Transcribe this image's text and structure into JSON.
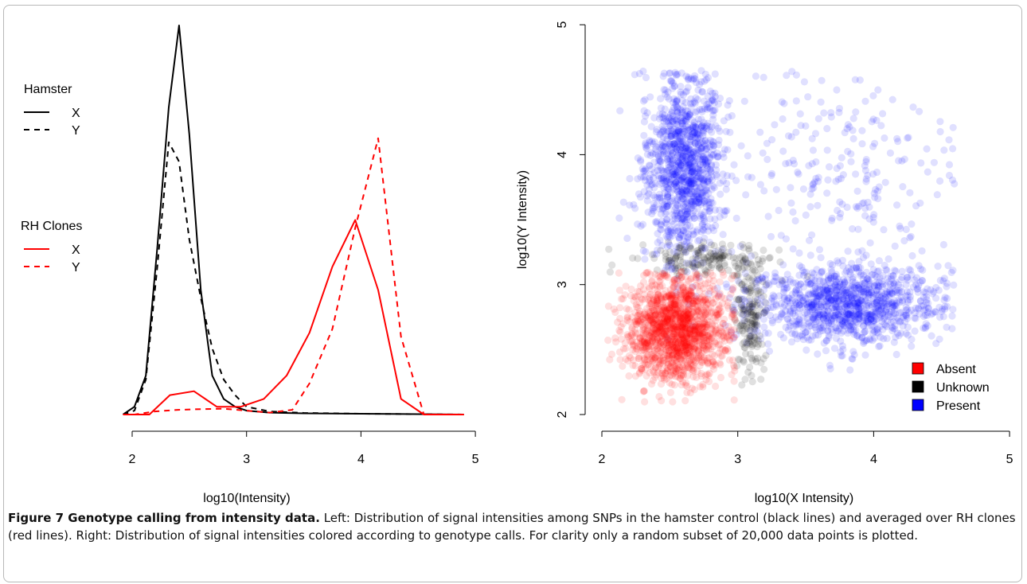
{
  "caption": {
    "bold": "Figure 7 Genotype calling from intensity data.",
    "text": "Left: Distribution of signal intensities among SNPs in the hamster control (black lines) and averaged over RH clones (red lines). Right: Distribution of signal intensities colored according to genotype calls. For clarity only a random subset of 20,000 data points is plotted."
  },
  "colors": {
    "black": "#000000",
    "red": "#ff0000",
    "blue": "#0000ff"
  },
  "chart_data": [
    {
      "type": "line",
      "xlabel": "log10(Intensity)",
      "ylabel": "",
      "xlim": [
        1.9,
        4.9
      ],
      "ylim": [
        0,
        1.0
      ],
      "x_ticks": [
        2,
        3,
        4,
        5
      ],
      "legend": [
        {
          "title": "Hamster",
          "entries": [
            {
              "label": "X",
              "style": "solid",
              "color": "#000000"
            },
            {
              "label": "Y",
              "style": "dashed",
              "color": "#000000"
            }
          ]
        },
        {
          "title": "RH Clones",
          "entries": [
            {
              "label": "X",
              "style": "solid",
              "color": "#ff0000"
            },
            {
              "label": "Y",
              "style": "dashed",
              "color": "#ff0000"
            }
          ]
        }
      ],
      "series": [
        {
          "group": "Hamster",
          "name": "X",
          "color": "#000000",
          "style": "solid",
          "x": [
            1.92,
            2.02,
            2.12,
            2.22,
            2.32,
            2.41,
            2.5,
            2.6,
            2.7,
            2.8,
            2.9,
            3.0,
            3.2,
            3.5,
            4.0,
            4.5,
            4.9
          ],
          "y": [
            0.0,
            0.02,
            0.1,
            0.43,
            0.79,
            1.0,
            0.72,
            0.32,
            0.1,
            0.04,
            0.02,
            0.01,
            0.005,
            0.003,
            0.002,
            0.001,
            0.0
          ]
        },
        {
          "group": "Hamster",
          "name": "Y",
          "color": "#000000",
          "style": "dashed",
          "x": [
            1.92,
            2.02,
            2.12,
            2.22,
            2.32,
            2.41,
            2.5,
            2.6,
            2.7,
            2.8,
            2.9,
            3.0,
            3.2,
            3.5,
            4.0,
            4.5,
            4.9
          ],
          "y": [
            0.0,
            0.01,
            0.09,
            0.38,
            0.7,
            0.65,
            0.45,
            0.3,
            0.17,
            0.09,
            0.05,
            0.02,
            0.008,
            0.004,
            0.002,
            0.001,
            0.0
          ]
        },
        {
          "group": "RH Clones",
          "name": "X",
          "color": "#ff0000",
          "style": "solid",
          "x": [
            1.92,
            2.02,
            2.15,
            2.33,
            2.54,
            2.74,
            2.95,
            3.15,
            3.35,
            3.55,
            3.75,
            3.95,
            4.15,
            4.35,
            4.55,
            4.75,
            4.9
          ],
          "y": [
            0.0,
            0.0,
            0.0,
            0.05,
            0.06,
            0.02,
            0.02,
            0.04,
            0.1,
            0.21,
            0.38,
            0.5,
            0.32,
            0.04,
            0.0,
            0.0,
            0.0
          ]
        },
        {
          "group": "RH Clones",
          "name": "Y",
          "color": "#ff0000",
          "style": "dashed",
          "x": [
            1.92,
            2.02,
            2.2,
            2.4,
            2.6,
            2.8,
            3.0,
            3.2,
            3.4,
            3.55,
            3.75,
            3.95,
            4.15,
            4.35,
            4.55,
            4.75,
            4.9
          ],
          "y": [
            0.0,
            0.0,
            0.008,
            0.012,
            0.014,
            0.015,
            0.01,
            0.005,
            0.012,
            0.08,
            0.22,
            0.48,
            0.71,
            0.2,
            0.0,
            0.0,
            0.0
          ]
        }
      ]
    },
    {
      "type": "scatter",
      "xlabel": "log10(X Intensity)",
      "ylabel": "log10(Y Intensity)",
      "xlim": [
        2,
        5
      ],
      "ylim": [
        2,
        5
      ],
      "x_ticks": [
        2,
        3,
        4,
        5
      ],
      "y_ticks": [
        2,
        3,
        4,
        5
      ],
      "legend_position": "bottom-right",
      "total_points": 20000,
      "series": [
        {
          "name": "Absent",
          "color": "#ff0000",
          "clusters": [
            {
              "center": [
                2.55,
                2.65
              ],
              "spread": [
                0.18,
                0.2
              ],
              "bounds": {
                "xmax": 2.98,
                "ymax": 3.1
              },
              "share": 0.35
            }
          ]
        },
        {
          "name": "Unknown",
          "color": "#000000",
          "clusters": [
            {
              "center": [
                2.72,
                3.2
              ],
              "spread": [
                0.25,
                0.06
              ],
              "share": 0.04
            },
            {
              "center": [
                3.1,
                2.75
              ],
              "spread": [
                0.06,
                0.22
              ],
              "share": 0.04
            }
          ]
        },
        {
          "name": "Present",
          "color": "#0000ff",
          "clusters": [
            {
              "center": [
                2.6,
                3.9
              ],
              "spread": [
                0.14,
                0.35
              ],
              "share": 0.26
            },
            {
              "center": [
                3.8,
                2.85
              ],
              "spread": [
                0.35,
                0.15
              ],
              "share": 0.26
            },
            {
              "center": [
                3.7,
                3.9
              ],
              "spread": [
                0.45,
                0.35
              ],
              "share": 0.05
            }
          ]
        }
      ]
    }
  ]
}
